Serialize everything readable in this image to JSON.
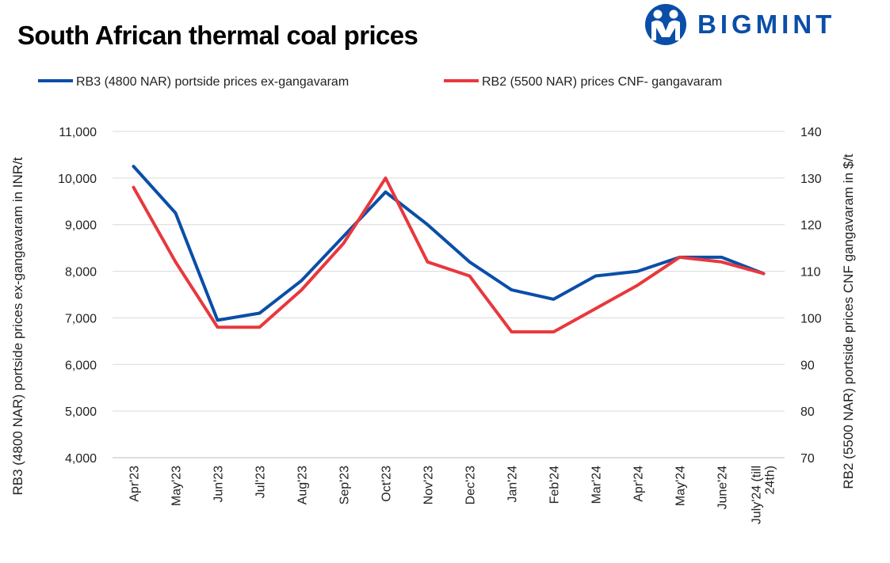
{
  "title": "South African thermal coal prices",
  "logo": {
    "text": "BIGMINT",
    "icon": "people-logo-icon",
    "color": "#0a4ea8"
  },
  "chart_data": {
    "type": "line",
    "title": "South African thermal coal prices",
    "categories": [
      "Apr'23",
      "May'23",
      "Jun'23",
      "Jul'23",
      "Aug'23",
      "Sep'23",
      "Oct'23",
      "Nov'23",
      "Dec'23",
      "Jan'24",
      "Feb'24",
      "Mar'24",
      "Apr'24",
      "May'24",
      "June'24",
      "July'24 (till 24th)"
    ],
    "series": [
      {
        "name": "RB3 (4800 NAR) portside prices ex-gangavaram",
        "axis": "left",
        "color": "#0a4ea8",
        "values": [
          10250,
          9250,
          6950,
          7100,
          7800,
          8750,
          9700,
          9000,
          8200,
          7600,
          7400,
          7900,
          8000,
          8300,
          8300,
          7950
        ]
      },
      {
        "name": "RB2 (5500 NAR) prices CNF- gangavaram",
        "axis": "right",
        "color": "#e8383d",
        "values": [
          128,
          112,
          98,
          98,
          106,
          116,
          130,
          112,
          109,
          97,
          97,
          102,
          107,
          113,
          112,
          109.5
        ]
      }
    ],
    "y_left": {
      "label": "RB3 (4800 NAR) portside prices ex-gangavaram in INR/t",
      "ylim": [
        4000,
        11000
      ],
      "ticks": [
        "4,000",
        "5,000",
        "6,000",
        "7,000",
        "8,000",
        "9,000",
        "10,000",
        "11,000"
      ]
    },
    "y_right": {
      "label": "RB2 (5500 NAR) portside prices CNF  gangavaram in $/t",
      "ylim": [
        70,
        140
      ],
      "ticks": [
        "70",
        "80",
        "90",
        "100",
        "110",
        "120",
        "130",
        "140"
      ]
    },
    "grid": true,
    "legend_position": "top"
  }
}
